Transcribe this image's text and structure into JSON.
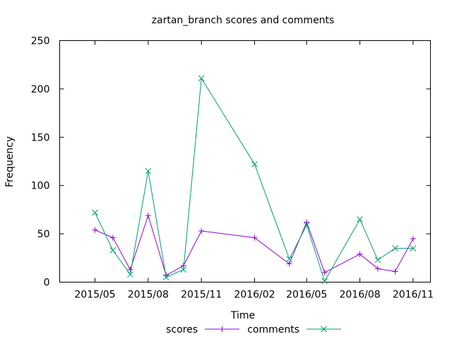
{
  "chart_data": {
    "type": "line",
    "title": "zartan_branch scores and comments",
    "xlabel": "Time",
    "ylabel": "Frequency",
    "ylim": [
      0,
      250
    ],
    "xlim": [
      "2015-03-01",
      "2016-12-01"
    ],
    "yticks": [
      0,
      50,
      100,
      150,
      200,
      250
    ],
    "xticks": [
      {
        "label": "2015/05",
        "date": "2015-05-01"
      },
      {
        "label": "2015/08",
        "date": "2015-08-01"
      },
      {
        "label": "2015/11",
        "date": "2015-11-01"
      },
      {
        "label": "2016/02",
        "date": "2016-02-01"
      },
      {
        "label": "2016/05",
        "date": "2016-05-01"
      },
      {
        "label": "2016/08",
        "date": "2016-08-01"
      },
      {
        "label": "2016/11",
        "date": "2016-11-01"
      }
    ],
    "grid": false,
    "legend_position": "bottom-center",
    "series": [
      {
        "name": "scores",
        "color": "#9400d3",
        "marker": "plus",
        "points": [
          [
            "2015-05-01",
            54
          ],
          [
            "2015-06-01",
            46
          ],
          [
            "2015-07-01",
            13
          ],
          [
            "2015-08-01",
            69
          ],
          [
            "2015-09-01",
            7
          ],
          [
            "2015-10-01",
            17
          ],
          [
            "2015-11-01",
            53
          ],
          [
            "2016-02-01",
            46
          ],
          [
            "2016-04-01",
            19
          ],
          [
            "2016-05-01",
            62
          ],
          [
            "2016-06-01",
            10
          ],
          [
            "2016-08-01",
            29
          ],
          [
            "2016-09-01",
            14
          ],
          [
            "2016-10-01",
            11
          ],
          [
            "2016-11-01",
            45
          ]
        ]
      },
      {
        "name": "comments",
        "color": "#009e73",
        "marker": "cross",
        "points": [
          [
            "2015-05-01",
            72
          ],
          [
            "2015-06-01",
            33
          ],
          [
            "2015-07-01",
            8
          ],
          [
            "2015-08-01",
            115
          ],
          [
            "2015-09-01",
            5
          ],
          [
            "2015-10-01",
            13
          ],
          [
            "2015-11-01",
            211
          ],
          [
            "2016-02-01",
            122
          ],
          [
            "2016-04-01",
            24
          ],
          [
            "2016-05-01",
            59
          ],
          [
            "2016-06-01",
            1
          ],
          [
            "2016-08-01",
            65
          ],
          [
            "2016-09-01",
            23
          ],
          [
            "2016-10-01",
            35
          ],
          [
            "2016-11-01",
            35
          ]
        ]
      }
    ]
  }
}
